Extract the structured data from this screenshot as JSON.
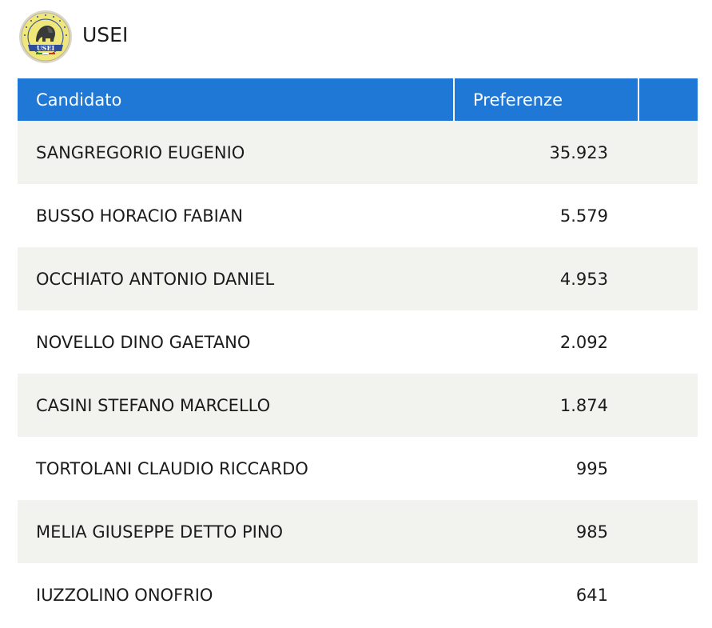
{
  "party": {
    "name": "USEI",
    "logo_text": "USEI",
    "logo_ring_text": "UNIONE SUDAMERICANA EMIGRATI ITALIANI"
  },
  "table": {
    "columns": [
      "Candidato",
      "Preferenze",
      ""
    ],
    "rows": [
      {
        "name": "SANGREGORIO EUGENIO",
        "votes": "35.923"
      },
      {
        "name": "BUSSO HORACIO FABIAN",
        "votes": "5.579"
      },
      {
        "name": "OCCHIATO ANTONIO DANIEL",
        "votes": "4.953"
      },
      {
        "name": "NOVELLO DINO GAETANO",
        "votes": "2.092"
      },
      {
        "name": "CASINI STEFANO MARCELLO",
        "votes": "1.874"
      },
      {
        "name": "TORTOLANI CLAUDIO RICCARDO",
        "votes": "995"
      },
      {
        "name": "MELIA GIUSEPPE DETTO PINO",
        "votes": "985"
      },
      {
        "name": "IUZZOLINO ONOFRIO",
        "votes": "641"
      }
    ]
  },
  "colors": {
    "header_bg": "#1f77d6",
    "header_text": "#ffffff",
    "row_alt_bg": "#f2f2ee",
    "logo_yellow": "#efe77a",
    "logo_blue": "#2f4b9a"
  }
}
